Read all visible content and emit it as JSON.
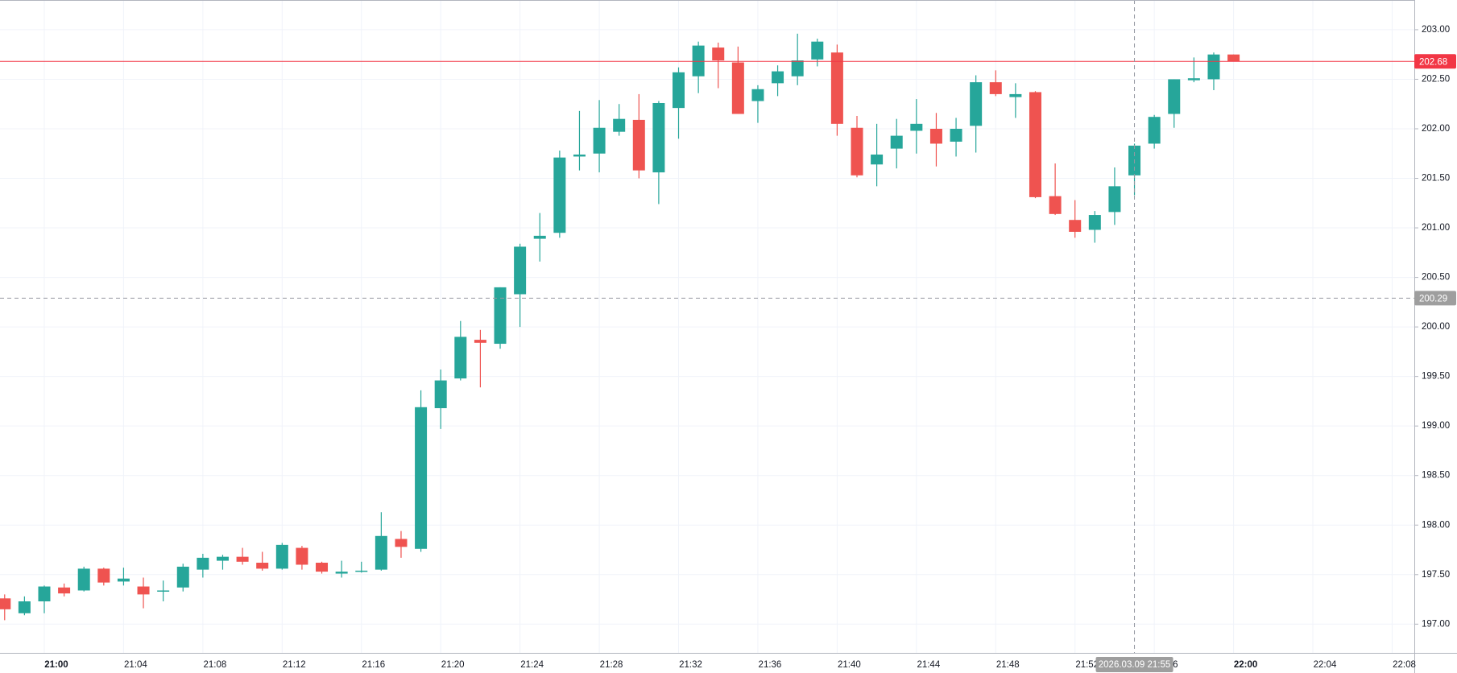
{
  "chart_data": {
    "type": "candlestick",
    "categories": [
      null,
      null,
      "21:00",
      null,
      null,
      null,
      "21:04",
      null,
      null,
      null,
      "21:08",
      null,
      null,
      null,
      "21:12",
      null,
      null,
      null,
      "21:16",
      null,
      null,
      null,
      "21:20",
      null,
      null,
      null,
      "21:24",
      null,
      null,
      null,
      "21:28",
      null,
      null,
      null,
      "21:32",
      null,
      null,
      null,
      "21:36",
      null,
      null,
      null,
      "21:40",
      null,
      null,
      null,
      "21:44",
      null,
      null,
      null,
      "21:48",
      null,
      null,
      null,
      "21:52",
      null,
      null,
      null,
      "21:56",
      null,
      null,
      null,
      "22:00",
      null,
      null,
      null,
      "22:04",
      null,
      null,
      null,
      "22:08"
    ],
    "open": [
      197.26,
      197.11,
      197.23,
      197.37,
      197.34,
      197.56,
      197.43,
      197.38,
      197.33,
      197.37,
      197.55,
      197.64,
      197.68,
      197.62,
      197.56,
      197.77,
      197.62,
      197.51,
      197.53,
      197.55,
      197.86,
      197.76,
      199.18,
      199.48,
      199.87,
      199.83,
      200.33,
      200.89,
      200.95,
      201.72,
      201.75,
      201.97,
      202.09,
      201.56,
      202.21,
      202.53,
      202.82,
      202.67,
      202.28,
      202.46,
      202.53,
      202.7,
      202.77,
      202.01,
      201.64,
      201.8,
      201.98,
      202.0,
      201.87,
      202.03,
      202.47,
      202.32,
      202.37,
      201.32,
      201.08,
      200.98,
      201.16,
      201.53,
      201.85,
      202.15,
      202.49,
      202.5,
      202.75,
      null,
      null,
      null,
      null,
      null,
      null,
      null,
      null
    ],
    "high": [
      197.3,
      197.28,
      197.39,
      197.41,
      197.58,
      197.57,
      197.57,
      197.47,
      197.44,
      197.61,
      197.71,
      197.7,
      197.77,
      197.73,
      197.82,
      197.79,
      197.63,
      197.64,
      197.63,
      198.13,
      197.94,
      199.36,
      199.57,
      200.06,
      199.97,
      200.4,
      200.84,
      201.15,
      201.78,
      202.18,
      202.29,
      202.25,
      202.35,
      202.28,
      202.62,
      202.88,
      202.87,
      202.83,
      202.44,
      202.64,
      202.96,
      202.91,
      202.85,
      202.13,
      202.05,
      202.1,
      202.3,
      202.16,
      202.11,
      202.54,
      202.59,
      202.46,
      202.38,
      201.65,
      201.28,
      201.17,
      201.61,
      201.85,
      202.14,
      202.5,
      202.72,
      202.77,
      202.75,
      null,
      null,
      null,
      null,
      null,
      null,
      null,
      null
    ],
    "low": [
      197.04,
      197.09,
      197.11,
      197.28,
      197.33,
      197.39,
      197.39,
      197.16,
      197.23,
      197.33,
      197.47,
      197.55,
      197.6,
      197.54,
      197.55,
      197.55,
      197.51,
      197.47,
      197.52,
      197.54,
      197.67,
      197.73,
      198.97,
      199.46,
      199.39,
      199.78,
      200.0,
      200.66,
      200.9,
      201.58,
      201.56,
      201.93,
      201.5,
      201.24,
      201.9,
      202.36,
      202.41,
      202.15,
      202.06,
      202.33,
      202.44,
      202.63,
      201.93,
      201.51,
      201.42,
      201.6,
      201.75,
      201.62,
      201.72,
      201.76,
      202.33,
      202.11,
      201.3,
      201.13,
      200.9,
      200.85,
      201.03,
      201.33,
      201.8,
      202.01,
      202.47,
      202.39,
      202.68,
      null,
      null,
      null,
      null,
      null,
      null,
      null,
      null
    ],
    "close": [
      197.15,
      197.23,
      197.38,
      197.31,
      197.56,
      197.42,
      197.46,
      197.3,
      197.34,
      197.58,
      197.67,
      197.68,
      197.63,
      197.56,
      197.8,
      197.6,
      197.53,
      197.53,
      197.54,
      197.89,
      197.78,
      199.19,
      199.46,
      199.9,
      199.84,
      200.4,
      200.81,
      200.92,
      201.71,
      201.74,
      202.01,
      202.1,
      201.58,
      202.26,
      202.57,
      202.84,
      202.69,
      202.15,
      202.4,
      202.58,
      202.69,
      202.88,
      202.05,
      201.53,
      201.74,
      201.93,
      202.05,
      201.85,
      202.0,
      202.47,
      202.35,
      202.35,
      201.31,
      201.14,
      200.96,
      201.13,
      201.42,
      201.83,
      202.12,
      202.5,
      202.51,
      202.75,
      202.68,
      null,
      null,
      null,
      null,
      null,
      null,
      null,
      null
    ],
    "up_color": "#26a69a",
    "down_color": "#ef5350",
    "ylim": [
      196.71,
      203.3
    ],
    "yticks": [
      {
        "value": 197,
        "label": "197.00"
      },
      {
        "value": 197.5,
        "label": "197.50"
      },
      {
        "value": 198,
        "label": "198.00"
      },
      {
        "value": 198.5,
        "label": "198.50"
      },
      {
        "value": 199,
        "label": "199.00"
      },
      {
        "value": 199.5,
        "label": "199.50"
      },
      {
        "value": 200,
        "label": "200.00"
      },
      {
        "value": 200.5,
        "label": "200.50"
      },
      {
        "value": 201,
        "label": "201.00"
      },
      {
        "value": 201.5,
        "label": "201.50"
      },
      {
        "value": 202,
        "label": "202.00"
      },
      {
        "value": 202.5,
        "label": "202.50"
      },
      {
        "value": 203,
        "label": "203.00"
      }
    ],
    "grid": true,
    "last_price": 202.68,
    "last_price_color": "#f23645",
    "crosshair": {
      "x": "2026.03.09 21:55",
      "y": 200.29
    }
  }
}
